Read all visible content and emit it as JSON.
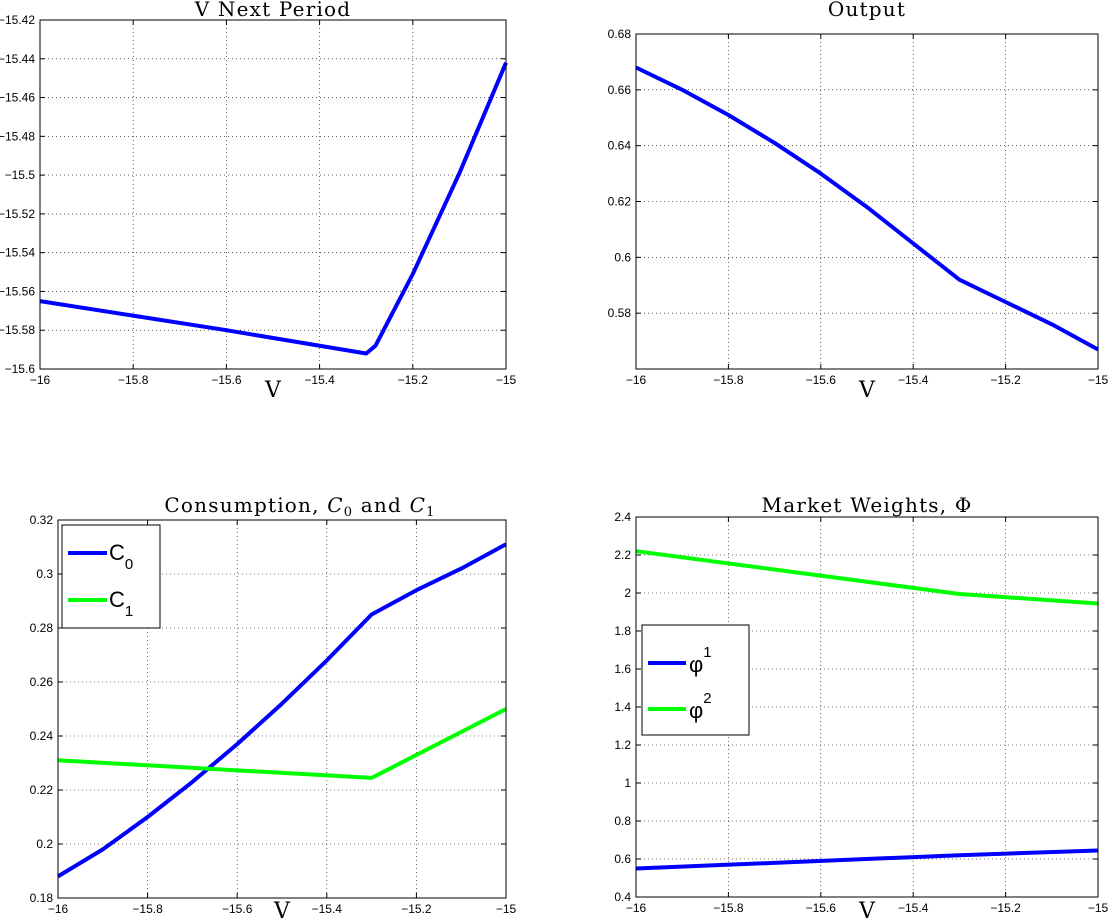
{
  "chart_data": [
    {
      "type": "line",
      "title": "V Next Period",
      "xlabel": "V",
      "ylabel": "",
      "xlim": [
        -16,
        -15
      ],
      "ylim": [
        -15.6,
        -15.42
      ],
      "xticks": [
        "−16",
        "−15.8",
        "−15.6",
        "−15.4",
        "−15.2",
        "−15"
      ],
      "yticks": [
        "−15.6",
        "−15.58",
        "−15.56",
        "−15.54",
        "−15.52",
        "−15.5",
        "−15.48",
        "−15.46",
        "−15.44",
        "−15.42"
      ],
      "grid": true,
      "colors": {
        "series1": "#0000ff"
      },
      "series": [
        {
          "x": [
            -16,
            -15.6,
            -15.3,
            -15.28,
            -15.2,
            -15.1,
            -15.0
          ],
          "y": [
            -15.565,
            -15.58,
            -15.592,
            -15.588,
            -15.551,
            -15.499,
            -15.442
          ]
        }
      ]
    },
    {
      "type": "line",
      "title": "Output",
      "xlabel": "V",
      "ylabel": "",
      "xlim": [
        -16,
        -15
      ],
      "ylim": [
        0.56,
        0.68
      ],
      "xticks": [
        "−16",
        "−15.8",
        "−15.6",
        "−15.4",
        "−15.2",
        "−15"
      ],
      "yticks": [
        "0.58",
        "0.6",
        "0.62",
        "0.64",
        "0.66",
        "0.68"
      ],
      "grid": true,
      "colors": {
        "series1": "#0000ff"
      },
      "series": [
        {
          "x": [
            -16,
            -15.9,
            -15.8,
            -15.7,
            -15.6,
            -15.5,
            -15.4,
            -15.3,
            -15.2,
            -15.1,
            -15.0
          ],
          "y": [
            0.668,
            0.66,
            0.651,
            0.641,
            0.63,
            0.618,
            0.605,
            0.592,
            0.584,
            0.576,
            0.567
          ]
        }
      ]
    },
    {
      "type": "line",
      "title": "Consumption, ",
      "title_math": {
        "c0": "C",
        "c0_sub": "0",
        "and": " and ",
        "c1": "C",
        "c1_sub": "1"
      },
      "xlabel": "V",
      "ylabel": "",
      "xlim": [
        -16,
        -15
      ],
      "ylim": [
        0.18,
        0.32
      ],
      "xticks": [
        "−16",
        "−15.8",
        "−15.6",
        "−15.4",
        "−15.2",
        "−15"
      ],
      "yticks": [
        "0.18",
        "0.2",
        "0.22",
        "0.24",
        "0.26",
        "0.28",
        "0.3",
        "0.32"
      ],
      "grid": true,
      "legend_position": "top-left",
      "series": [
        {
          "name": "C",
          "sub": "0",
          "color": "#0000ff",
          "x": [
            -16,
            -15.9,
            -15.8,
            -15.7,
            -15.6,
            -15.5,
            -15.4,
            -15.3,
            -15.2,
            -15.1,
            -15.0
          ],
          "y": [
            0.188,
            0.198,
            0.21,
            0.223,
            0.237,
            0.252,
            0.268,
            0.285,
            0.294,
            0.302,
            0.311
          ]
        },
        {
          "name": "C",
          "sub": "1",
          "color": "#00ff00",
          "x": [
            -16,
            -15.3,
            -15.0
          ],
          "y": [
            0.231,
            0.2245,
            0.25
          ]
        }
      ]
    },
    {
      "type": "line",
      "title": "Market Weights, Φ",
      "xlabel": "V",
      "ylabel": "",
      "xlim": [
        -16,
        -15
      ],
      "ylim": [
        0.4,
        2.4
      ],
      "xticks": [
        "−16",
        "−15.8",
        "−15.6",
        "−15.4",
        "−15.2",
        "−15"
      ],
      "yticks": [
        "0.4",
        "0.6",
        "0.8",
        "1",
        "1.2",
        "1.4",
        "1.6",
        "1.8",
        "2",
        "2.2",
        "2.4"
      ],
      "grid": true,
      "legend_position": "middle-left",
      "series": [
        {
          "name": "φ",
          "sup": "1",
          "color": "#0000ff",
          "x": [
            -16,
            -15.3,
            -15.0
          ],
          "y": [
            0.55,
            0.62,
            0.645
          ]
        },
        {
          "name": "φ",
          "sup": "2",
          "color": "#00ff00",
          "x": [
            -16,
            -15.3,
            -15.0
          ],
          "y": [
            2.22,
            1.995,
            1.945
          ]
        }
      ]
    }
  ]
}
